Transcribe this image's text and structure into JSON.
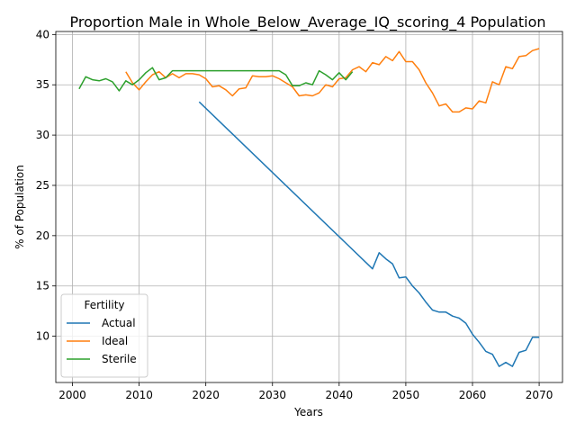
{
  "chart_data": {
    "type": "line",
    "title": "Proportion Male in Whole_Below_Average_IQ_scoring_4 Population",
    "xlabel": "Years",
    "ylabel": "% of Population",
    "xlim": [
      1997.5,
      2073.5
    ],
    "ylim": [
      5.4,
      40.3
    ],
    "xticks": [
      2000,
      2010,
      2020,
      2030,
      2040,
      2050,
      2060,
      2070
    ],
    "yticks": [
      10,
      15,
      20,
      25,
      30,
      35,
      40
    ],
    "grid": true,
    "legend": {
      "title": "Fertility",
      "placement": "lower left"
    },
    "series": [
      {
        "name": "Actual",
        "color": "#1f77b4",
        "points": [
          [
            2019,
            33.3
          ],
          [
            2045,
            16.7
          ],
          [
            2046,
            18.3
          ],
          [
            2047,
            17.7
          ],
          [
            2048,
            17.2
          ],
          [
            2049,
            15.8
          ],
          [
            2050,
            15.9
          ],
          [
            2051,
            15.0
          ],
          [
            2052,
            14.3
          ],
          [
            2053,
            13.4
          ],
          [
            2054,
            12.6
          ],
          [
            2055,
            12.4
          ],
          [
            2056,
            12.4
          ],
          [
            2057,
            12.0
          ],
          [
            2058,
            11.8
          ],
          [
            2059,
            11.3
          ],
          [
            2060,
            10.2
          ],
          [
            2061,
            9.4
          ],
          [
            2062,
            8.5
          ],
          [
            2063,
            8.2
          ],
          [
            2064,
            7.0
          ],
          [
            2065,
            7.4
          ],
          [
            2066,
            7.0
          ],
          [
            2067,
            8.4
          ],
          [
            2068,
            8.6
          ],
          [
            2069,
            9.9
          ],
          [
            2070,
            9.9
          ]
        ]
      },
      {
        "name": "Ideal",
        "color": "#ff7f0e",
        "points": [
          [
            2008,
            36.3
          ],
          [
            2009,
            35.2
          ],
          [
            2010,
            34.5
          ],
          [
            2011,
            35.3
          ],
          [
            2012,
            36.0
          ],
          [
            2013,
            36.3
          ],
          [
            2014,
            35.7
          ],
          [
            2015,
            36.1
          ],
          [
            2016,
            35.7
          ],
          [
            2017,
            36.1
          ],
          [
            2018,
            36.1
          ],
          [
            2019,
            36.0
          ],
          [
            2020,
            35.6
          ],
          [
            2021,
            34.8
          ],
          [
            2022,
            34.9
          ],
          [
            2023,
            34.5
          ],
          [
            2024,
            33.9
          ],
          [
            2025,
            34.6
          ],
          [
            2026,
            34.7
          ],
          [
            2027,
            35.9
          ],
          [
            2028,
            35.8
          ],
          [
            2029,
            35.8
          ],
          [
            2030,
            35.9
          ],
          [
            2031,
            35.6
          ],
          [
            2032,
            35.2
          ],
          [
            2033,
            34.8
          ],
          [
            2034,
            33.9
          ],
          [
            2035,
            34.0
          ],
          [
            2036,
            33.9
          ],
          [
            2037,
            34.2
          ],
          [
            2038,
            35.0
          ],
          [
            2039,
            34.8
          ],
          [
            2040,
            35.6
          ],
          [
            2041,
            35.7
          ],
          [
            2042,
            36.5
          ],
          [
            2043,
            36.8
          ],
          [
            2044,
            36.3
          ],
          [
            2045,
            37.2
          ],
          [
            2046,
            37.0
          ],
          [
            2047,
            37.8
          ],
          [
            2048,
            37.4
          ],
          [
            2049,
            38.3
          ],
          [
            2050,
            37.3
          ],
          [
            2051,
            37.3
          ],
          [
            2052,
            36.5
          ],
          [
            2053,
            35.2
          ],
          [
            2054,
            34.2
          ],
          [
            2055,
            32.9
          ],
          [
            2056,
            33.1
          ],
          [
            2057,
            32.3
          ],
          [
            2058,
            32.3
          ],
          [
            2059,
            32.7
          ],
          [
            2060,
            32.6
          ],
          [
            2061,
            33.4
          ],
          [
            2062,
            33.2
          ],
          [
            2063,
            35.3
          ],
          [
            2064,
            35.0
          ],
          [
            2065,
            36.8
          ],
          [
            2066,
            36.6
          ],
          [
            2067,
            37.8
          ],
          [
            2068,
            37.9
          ],
          [
            2069,
            38.4
          ],
          [
            2070,
            38.6
          ]
        ]
      },
      {
        "name": "Sterile",
        "color": "#2ca02c",
        "points": [
          [
            2001,
            34.6
          ],
          [
            2002,
            35.8
          ],
          [
            2003,
            35.5
          ],
          [
            2004,
            35.4
          ],
          [
            2005,
            35.6
          ],
          [
            2006,
            35.3
          ],
          [
            2007,
            34.4
          ],
          [
            2008,
            35.4
          ],
          [
            2009,
            35.0
          ],
          [
            2010,
            35.5
          ],
          [
            2011,
            36.2
          ],
          [
            2012,
            36.7
          ],
          [
            2013,
            35.5
          ],
          [
            2014,
            35.7
          ],
          [
            2015,
            36.4
          ],
          [
            2016,
            36.4
          ],
          [
            2031,
            36.4
          ],
          [
            2032,
            36.0
          ],
          [
            2033,
            34.9
          ],
          [
            2034,
            34.9
          ],
          [
            2035,
            35.2
          ],
          [
            2036,
            35.0
          ],
          [
            2037,
            36.4
          ],
          [
            2038,
            36.0
          ],
          [
            2039,
            35.5
          ],
          [
            2040,
            36.2
          ],
          [
            2041,
            35.5
          ],
          [
            2042,
            36.3
          ]
        ]
      }
    ]
  }
}
